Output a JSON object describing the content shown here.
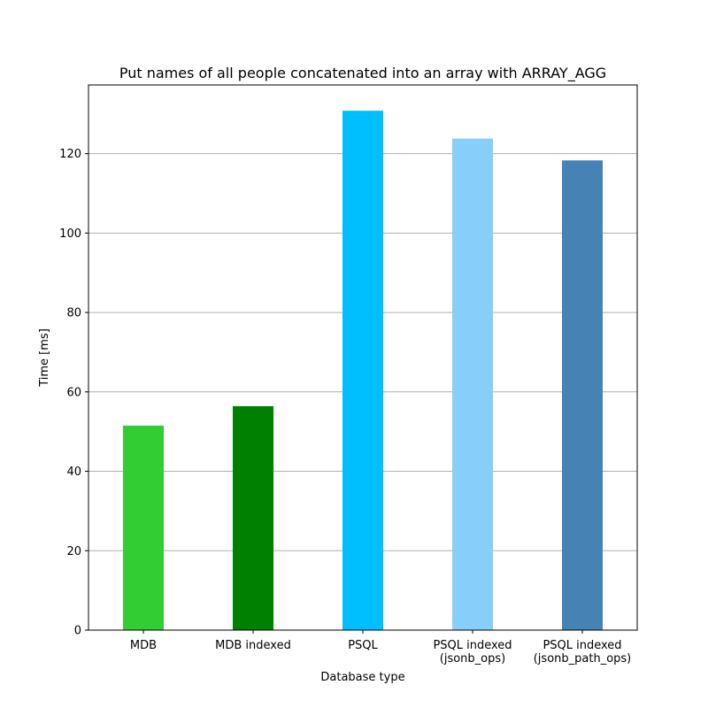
{
  "chart_data": {
    "type": "bar",
    "title": "Put names of all people concatenated into an array with ARRAY_AGG",
    "xlabel": "Database type",
    "ylabel": "Time [ms]",
    "categories": [
      [
        "MDB"
      ],
      [
        "MDB indexed"
      ],
      [
        "PSQL"
      ],
      [
        "PSQL indexed",
        "(jsonb_ops)"
      ],
      [
        "PSQL indexed",
        "(jsonb_path_ops)"
      ]
    ],
    "values": [
      51.5,
      56.4,
      130.8,
      123.8,
      118.3
    ],
    "colors": [
      "#32cd32",
      "#008000",
      "#00bfff",
      "#87cefa",
      "#4682b4"
    ],
    "ylim": [
      0,
      137.3
    ],
    "yticks": [
      0,
      20,
      40,
      60,
      80,
      100,
      120
    ],
    "grid": "horizontal",
    "legend": "none"
  }
}
